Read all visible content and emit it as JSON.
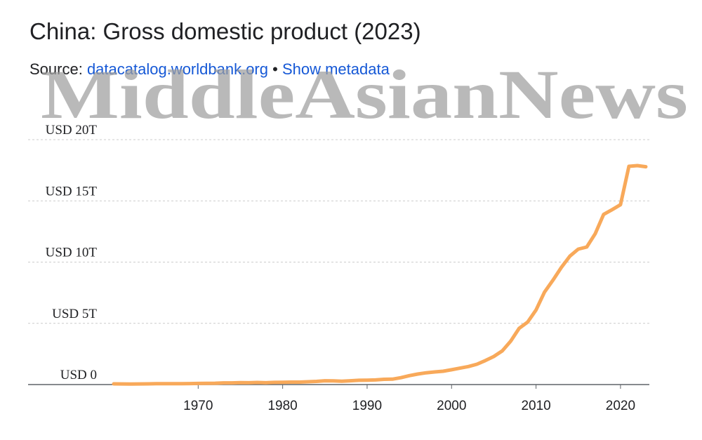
{
  "header": {
    "title": "China: Gross domestic product (2023)",
    "source_label": "Source: ",
    "source_link": "datacatalog.worldbank.org",
    "separator": "•",
    "metadata_link": "Show metadata"
  },
  "watermark": "MiddleAsianNews",
  "colors": {
    "line": "#F8A95A",
    "grid": "#cccccc",
    "axis": "#5f6368",
    "link": "#1558d6"
  },
  "chart_data": {
    "type": "line",
    "title": "China: Gross domestic product (2023)",
    "xlabel": "",
    "ylabel": "",
    "xlim": [
      1960,
      2023
    ],
    "ylim": [
      0,
      20
    ],
    "y_unit": "USD trillions",
    "grid": true,
    "x_ticks": [
      "1970",
      "1980",
      "1990",
      "2000",
      "2010",
      "2020"
    ],
    "y_ticks": [
      "USD 0",
      "USD 5T",
      "USD 10T",
      "USD 15T",
      "USD 20T"
    ],
    "series": [
      {
        "values": [
          [
            1960,
            0.06
          ],
          [
            1961,
            0.05
          ],
          [
            1962,
            0.047
          ],
          [
            1963,
            0.051
          ],
          [
            1964,
            0.059
          ],
          [
            1965,
            0.07
          ],
          [
            1966,
            0.076
          ],
          [
            1967,
            0.072
          ],
          [
            1968,
            0.07
          ],
          [
            1969,
            0.079
          ],
          [
            1970,
            0.093
          ],
          [
            1971,
            0.1
          ],
          [
            1972,
            0.11
          ],
          [
            1973,
            0.14
          ],
          [
            1974,
            0.14
          ],
          [
            1975,
            0.16
          ],
          [
            1976,
            0.15
          ],
          [
            1977,
            0.17
          ],
          [
            1978,
            0.15
          ],
          [
            1979,
            0.18
          ],
          [
            1980,
            0.19
          ],
          [
            1981,
            0.2
          ],
          [
            1982,
            0.2
          ],
          [
            1983,
            0.23
          ],
          [
            1984,
            0.26
          ],
          [
            1985,
            0.31
          ],
          [
            1986,
            0.3
          ],
          [
            1987,
            0.27
          ],
          [
            1988,
            0.31
          ],
          [
            1989,
            0.35
          ],
          [
            1990,
            0.36
          ],
          [
            1991,
            0.38
          ],
          [
            1992,
            0.43
          ],
          [
            1993,
            0.44
          ],
          [
            1994,
            0.56
          ],
          [
            1995,
            0.73
          ],
          [
            1996,
            0.86
          ],
          [
            1997,
            0.96
          ],
          [
            1998,
            1.03
          ],
          [
            1999,
            1.09
          ],
          [
            2000,
            1.21
          ],
          [
            2001,
            1.34
          ],
          [
            2002,
            1.47
          ],
          [
            2003,
            1.66
          ],
          [
            2004,
            1.96
          ],
          [
            2005,
            2.29
          ],
          [
            2006,
            2.75
          ],
          [
            2007,
            3.55
          ],
          [
            2008,
            4.59
          ],
          [
            2009,
            5.1
          ],
          [
            2010,
            6.09
          ],
          [
            2011,
            7.55
          ],
          [
            2012,
            8.53
          ],
          [
            2013,
            9.57
          ],
          [
            2014,
            10.48
          ],
          [
            2015,
            11.06
          ],
          [
            2016,
            11.23
          ],
          [
            2017,
            12.31
          ],
          [
            2018,
            13.89
          ],
          [
            2019,
            14.28
          ],
          [
            2020,
            14.69
          ],
          [
            2021,
            17.82
          ],
          [
            2022,
            17.88
          ],
          [
            2023,
            17.79
          ]
        ]
      }
    ]
  }
}
